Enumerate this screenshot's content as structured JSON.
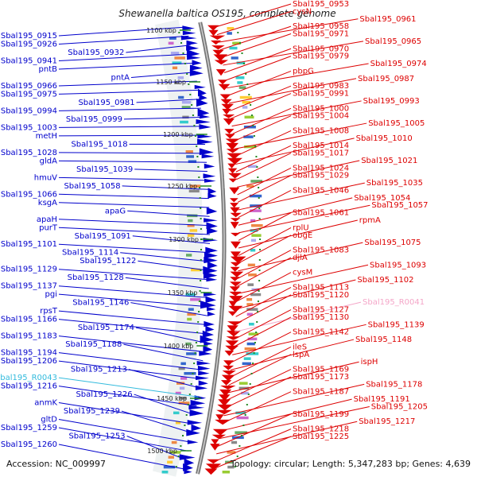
{
  "title": "Shewanella baltica OS195, complete genome",
  "footer": {
    "accession": "Accession: NC_009997",
    "summary": "Topology: circular; Length: 5,347,283 bp; Genes: 4,639"
  },
  "colors": {
    "forward": "#0000cc",
    "reverse": "#dd0000",
    "rna": "#33bbdd",
    "pseudo": "#f4a6c8",
    "backbone": "#888888",
    "tick": "#228822"
  },
  "scale_ticks": [
    "1100 kbp",
    "1150 kbp",
    "1200 kbp",
    "1250 kbp",
    "1300 kbp",
    "1350 kbp",
    "1400 kbp",
    "1450 kbp",
    "1500 kbp"
  ],
  "left_labels": [
    "Sbal195_0915",
    "Sbal195_0926",
    "Sbal195_0932",
    "Sbal195_0941",
    "pntB",
    "pntA",
    "Sbal195_0966",
    "Sbal195_0975",
    "Sbal195_0981",
    "Sbal195_0994",
    "Sbal195_0999",
    "Sbal195_1003",
    "metH",
    "Sbal195_1018",
    "Sbal195_1028",
    "gldA",
    "Sbal195_1039",
    "hmuV",
    "Sbal195_1058",
    "Sbal195_1066",
    "ksgA",
    "apaG",
    "apaH",
    "purT",
    "Sbal195_1091",
    "Sbal195_1101",
    "Sbal195_1114",
    "Sbal195_1122",
    "Sbal195_1129",
    "Sbal195_1128",
    "Sbal195_1137",
    "pgi",
    "Sbal195_1146",
    "rpsT",
    "Sbal195_1166",
    "Sbal195_1174",
    "Sbal195_1183",
    "Sbal195_1188",
    "Sbal195_1194",
    "Sbal195_1206",
    "Sbal195_1213",
    "Sbal195_R0043",
    "Sbal195_1216",
    "Sbal195_1226",
    "anmK",
    "Sbal195_1239",
    "gltD",
    "Sbal195_1259",
    "Sbal195_1253",
    "Sbal195_1260"
  ],
  "right_labels": [
    "Sbal195_0953",
    "cysN",
    "Sbal195_0961",
    "Sbal195_0958",
    "Sbal195_0971",
    "Sbal195_0965",
    "Sbal195_0970",
    "Sbal195_0979",
    "Sbal195_0974",
    "pbpG",
    "Sbal195_0987",
    "Sbal195_0983",
    "Sbal195_0991",
    "Sbal195_0993",
    "Sbal195_1000",
    "Sbal195_1004",
    "Sbal195_1005",
    "Sbal195_1008",
    "Sbal195_1010",
    "Sbal195_1014",
    "Sbal195_1017",
    "Sbal195_1021",
    "Sbal195_1024",
    "Sbal195_1029",
    "Sbal195_1035",
    "Sbal195_1046",
    "Sbal195_1054",
    "Sbal195_1057",
    "Sbal195_1061",
    "rpmA",
    "rplU",
    "obgE",
    "Sbal195_1075",
    "Sbal195_1083",
    "djlA",
    "Sbal195_1093",
    "cysM",
    "Sbal195_1102",
    "Sbal195_1113",
    "Sbal195_1120",
    "Sbal195_R0041",
    "Sbal195_1127",
    "Sbal195_1130",
    "Sbal195_1139",
    "Sbal195_1142",
    "Sbal195_1148",
    "ileS",
    "lspA",
    "ispH",
    "Sbal195_1169",
    "Sbal195_1173",
    "Sbal195_1178",
    "Sbal195_1187",
    "Sbal195_1191",
    "Sbal195_1205",
    "Sbal195_1199",
    "Sbal195_1217",
    "Sbal195_1218",
    "Sbal195_1225"
  ]
}
